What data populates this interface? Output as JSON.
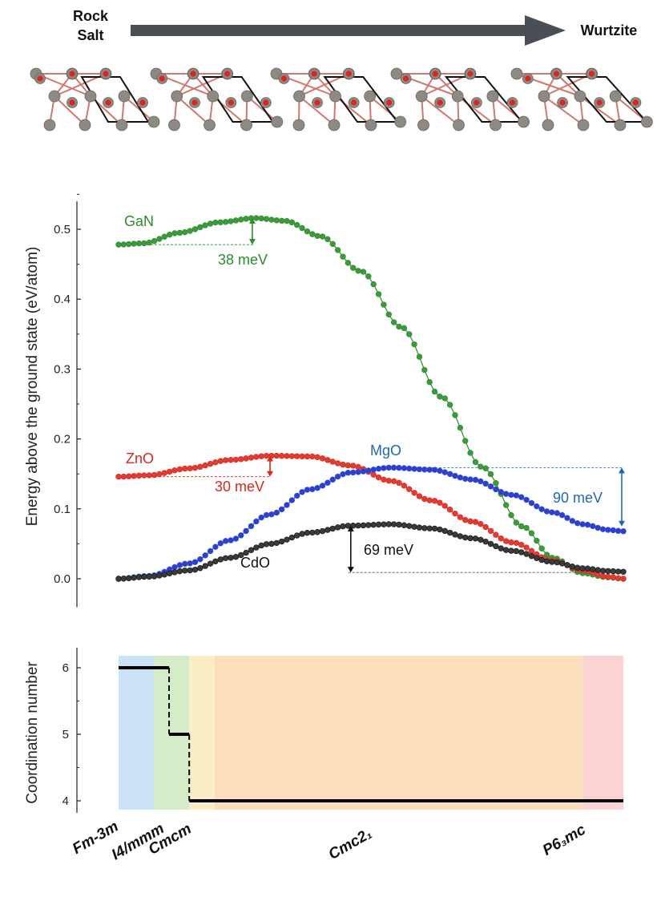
{
  "header": {
    "left_label_line1": "Rock",
    "left_label_line2": "Salt",
    "right_label": "Wurtzite",
    "arrow_color": "#4a4e55"
  },
  "structures": {
    "frames": 5,
    "metal_color": "#8d8a84",
    "oxygen_color": "#e0231e",
    "bond_color": "#d0786e",
    "cell_color": "#111111"
  },
  "chart_data": [
    {
      "type": "line",
      "ylabel": "Energy above the ground state (eV/atom)",
      "xlim": [
        0,
        1
      ],
      "ylim": [
        -0.02,
        0.54
      ],
      "yticks": [
        0.0,
        0.1,
        0.2,
        0.3,
        0.4,
        0.5
      ],
      "ytick_labels": [
        "0.0",
        "0.1",
        "0.2",
        "0.3",
        "0.4",
        "0.5"
      ],
      "points_per_series": 100,
      "series": [
        {
          "name": "GaN",
          "color": "#2e8b2e",
          "fill": "#3c9a3c",
          "knots_x": [
            0.0,
            0.05,
            0.12,
            0.2,
            0.27,
            0.33,
            0.4,
            0.48,
            0.56,
            0.64,
            0.72,
            0.8,
            0.86,
            0.92,
            0.97,
            1.0
          ],
          "knots_y": [
            0.478,
            0.48,
            0.495,
            0.51,
            0.516,
            0.512,
            0.49,
            0.44,
            0.36,
            0.26,
            0.16,
            0.075,
            0.03,
            0.008,
            0.002,
            0.0
          ],
          "barrier": {
            "label": "38 meV",
            "x": 0.27,
            "from": 0.478,
            "to": 0.516
          }
        },
        {
          "name": "ZnO",
          "color": "#d42a1e",
          "fill": "#e03c34",
          "knots_x": [
            0.0,
            0.06,
            0.14,
            0.22,
            0.3,
            0.38,
            0.46,
            0.54,
            0.62,
            0.7,
            0.78,
            0.86,
            0.92,
            0.97,
            1.0
          ],
          "knots_y": [
            0.146,
            0.148,
            0.158,
            0.17,
            0.176,
            0.175,
            0.162,
            0.14,
            0.112,
            0.082,
            0.052,
            0.026,
            0.012,
            0.003,
            0.0
          ],
          "barrier": {
            "label": "30 meV",
            "x": 0.3,
            "from": 0.146,
            "to": 0.176
          }
        },
        {
          "name": "MgO",
          "color": "#1f66b8",
          "fill": "#3838d6",
          "knots_x": [
            0.0,
            0.06,
            0.14,
            0.22,
            0.3,
            0.38,
            0.46,
            0.54,
            0.62,
            0.7,
            0.78,
            0.86,
            0.92,
            0.97,
            1.0
          ],
          "knots_y": [
            0.0,
            0.004,
            0.022,
            0.055,
            0.092,
            0.128,
            0.152,
            0.159,
            0.156,
            0.142,
            0.12,
            0.095,
            0.078,
            0.07,
            0.068
          ],
          "barrier": {
            "label": "90 meV",
            "x": 1.0,
            "from": 0.068,
            "to": 0.159
          }
        },
        {
          "name": "CdO",
          "color": "#111111",
          "fill": "#3a3a3a",
          "knots_x": [
            0.0,
            0.06,
            0.14,
            0.22,
            0.3,
            0.38,
            0.46,
            0.54,
            0.62,
            0.7,
            0.78,
            0.86,
            0.92,
            0.97,
            1.0
          ],
          "knots_y": [
            0.0,
            0.003,
            0.012,
            0.03,
            0.05,
            0.066,
            0.076,
            0.078,
            0.072,
            0.058,
            0.04,
            0.024,
            0.015,
            0.011,
            0.01
          ],
          "barrier": {
            "label": "69 meV",
            "x": 0.5,
            "from": 0.009,
            "to": 0.078
          }
        }
      ]
    },
    {
      "type": "step",
      "ylabel": "Coordination number",
      "xlim": [
        0,
        1
      ],
      "ylim": [
        3.85,
        6.25
      ],
      "yticks": [
        4,
        5,
        6
      ],
      "ytick_labels": [
        "4",
        "5",
        "6"
      ],
      "regions": [
        {
          "name": "Fm-3m",
          "from": 0.0,
          "to": 0.07,
          "color": "#cce2f7"
        },
        {
          "name": "I4/mmm",
          "from": 0.07,
          "to": 0.14,
          "color": "#d5ecc9"
        },
        {
          "name": "Cmcm",
          "from": 0.14,
          "to": 0.19,
          "color": "#fbeec6"
        },
        {
          "name": "Cmc2₁",
          "from": 0.19,
          "to": 0.92,
          "color": "#fbdfbd"
        },
        {
          "name": "P6₃mc",
          "from": 0.92,
          "to": 1.0,
          "color": "#fbd3d3"
        }
      ],
      "steps": [
        {
          "from": 0.0,
          "to": 0.1,
          "value": 6
        },
        {
          "from": 0.1,
          "to": 0.14,
          "value": 5
        },
        {
          "from": 0.14,
          "to": 1.0,
          "value": 4
        }
      ],
      "phase_labels": [
        {
          "text": "Fm-3m",
          "x": 0.0
        },
        {
          "text": "I4/mmm",
          "x": 0.1
        },
        {
          "text": "Cmcm",
          "x": 0.14
        },
        {
          "text": "Cmc2₁",
          "x": 0.5
        },
        {
          "text": "P6₃mc",
          "x": 0.93
        }
      ]
    }
  ]
}
